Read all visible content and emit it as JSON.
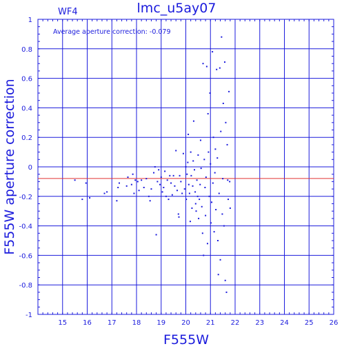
{
  "chart_data": {
    "type": "scatter",
    "title": "lmc_u5ay07",
    "panel_label": "WF4",
    "annotation": "Average aperture correction:  -0.079",
    "xlabel": "F555W",
    "ylabel": "F555W aperture correction",
    "xlim": [
      14,
      26
    ],
    "ylim": [
      -1,
      1
    ],
    "x_ticks": [
      "15",
      "16",
      "17",
      "18",
      "19",
      "20",
      "21",
      "22",
      "23",
      "24",
      "25",
      "26"
    ],
    "y_ticks": [
      "1",
      "0.8",
      "0.6",
      "0.4",
      "0.2",
      "0",
      "-0.2",
      "-0.4",
      "-0.6",
      "-0.8",
      "-1"
    ],
    "grid": true,
    "reference_line": {
      "y": -0.079,
      "color": "#e03030"
    },
    "colors": {
      "axes": "#1a1adc",
      "points": "#1a1adc",
      "reference": "#e03030"
    },
    "points": [
      [
        15.5,
        -0.09
      ],
      [
        15.8,
        -0.22
      ],
      [
        15.95,
        -0.11
      ],
      [
        16.1,
        -0.21
      ],
      [
        16.7,
        -0.18
      ],
      [
        16.8,
        -0.17
      ],
      [
        17.2,
        -0.23
      ],
      [
        17.25,
        -0.14
      ],
      [
        17.3,
        -0.11
      ],
      [
        17.6,
        -0.13
      ],
      [
        17.65,
        -0.07
      ],
      [
        17.8,
        -0.12
      ],
      [
        17.85,
        -0.05
      ],
      [
        17.9,
        -0.18
      ],
      [
        17.95,
        -0.09
      ],
      [
        18.05,
        -0.1
      ],
      [
        18.1,
        -0.16
      ],
      [
        18.2,
        -0.09
      ],
      [
        18.3,
        -0.14
      ],
      [
        18.4,
        -0.08
      ],
      [
        18.5,
        -0.2
      ],
      [
        18.55,
        -0.23
      ],
      [
        18.6,
        -0.15
      ],
      [
        18.7,
        -0.04
      ],
      [
        18.75,
        0.0
      ],
      [
        18.8,
        -0.46
      ],
      [
        18.85,
        -0.1
      ],
      [
        18.9,
        -0.02
      ],
      [
        18.95,
        -0.12
      ],
      [
        19.0,
        -0.07
      ],
      [
        19.05,
        -0.17
      ],
      [
        19.1,
        -0.14
      ],
      [
        19.15,
        -0.03
      ],
      [
        19.2,
        -0.2
      ],
      [
        19.25,
        -0.09
      ],
      [
        19.3,
        -0.22
      ],
      [
        19.35,
        -0.06
      ],
      [
        19.4,
        -0.11
      ],
      [
        19.45,
        -0.19
      ],
      [
        19.5,
        -0.06
      ],
      [
        19.55,
        -0.13
      ],
      [
        19.6,
        0.11
      ],
      [
        19.65,
        -0.16
      ],
      [
        19.7,
        -0.32
      ],
      [
        19.72,
        -0.34
      ],
      [
        19.75,
        -0.06
      ],
      [
        19.8,
        -0.1
      ],
      [
        19.85,
        -0.18
      ],
      [
        19.9,
        0.09
      ],
      [
        19.95,
        -0.15
      ],
      [
        20.0,
        0.0
      ],
      [
        20.02,
        -0.22
      ],
      [
        20.05,
        -0.05
      ],
      [
        20.08,
        0.03
      ],
      [
        20.1,
        0.22
      ],
      [
        20.12,
        -0.12
      ],
      [
        20.15,
        -0.18
      ],
      [
        20.18,
        -0.37
      ],
      [
        20.2,
        0.1
      ],
      [
        20.22,
        -0.06
      ],
      [
        20.25,
        -0.28
      ],
      [
        20.28,
        -0.13
      ],
      [
        20.3,
        0.04
      ],
      [
        20.32,
        0.31
      ],
      [
        20.35,
        -0.02
      ],
      [
        20.38,
        -0.17
      ],
      [
        20.4,
        -0.25
      ],
      [
        20.42,
        -0.3
      ],
      [
        20.45,
        -0.09
      ],
      [
        20.48,
        -0.2
      ],
      [
        20.5,
        0.08
      ],
      [
        20.52,
        -0.35
      ],
      [
        20.55,
        -0.22
      ],
      [
        20.58,
        -0.12
      ],
      [
        20.6,
        0.18
      ],
      [
        20.62,
        -0.01
      ],
      [
        20.65,
        -0.27
      ],
      [
        20.68,
        -0.45
      ],
      [
        20.7,
        0.7
      ],
      [
        20.72,
        -0.6
      ],
      [
        20.75,
        0.05
      ],
      [
        20.78,
        -0.14
      ],
      [
        20.8,
        -0.33
      ],
      [
        20.82,
        -0.07
      ],
      [
        20.85,
        0.68
      ],
      [
        20.88,
        -0.52
      ],
      [
        20.9,
        0.36
      ],
      [
        20.92,
        0.1
      ],
      [
        20.95,
        -0.2
      ],
      [
        20.98,
        0.5
      ],
      [
        21.0,
        0.02
      ],
      [
        21.02,
        -0.38
      ],
      [
        21.05,
        -0.24
      ],
      [
        21.08,
        0.78
      ],
      [
        21.1,
        -0.11
      ],
      [
        21.12,
        0.2
      ],
      [
        21.15,
        -0.44
      ],
      [
        21.18,
        -0.04
      ],
      [
        21.2,
        0.12
      ],
      [
        21.22,
        -0.29
      ],
      [
        21.25,
        0.66
      ],
      [
        21.28,
        0.06
      ],
      [
        21.3,
        -0.5
      ],
      [
        21.32,
        -0.73
      ],
      [
        21.35,
        -0.18
      ],
      [
        21.38,
        0.67
      ],
      [
        21.4,
        -0.63
      ],
      [
        21.42,
        0.24
      ],
      [
        21.45,
        0.88
      ],
      [
        21.48,
        -0.32
      ],
      [
        21.5,
        -0.08
      ],
      [
        21.52,
        0.43
      ],
      [
        21.55,
        -0.4
      ],
      [
        21.58,
        0.71
      ],
      [
        21.6,
        -0.77
      ],
      [
        21.62,
        0.3
      ],
      [
        21.65,
        -0.85
      ],
      [
        21.68,
        0.15
      ],
      [
        21.7,
        -0.09
      ],
      [
        21.72,
        -0.22
      ],
      [
        21.75,
        0.51
      ],
      [
        21.78,
        -0.1
      ],
      [
        21.8,
        -0.28
      ]
    ]
  }
}
